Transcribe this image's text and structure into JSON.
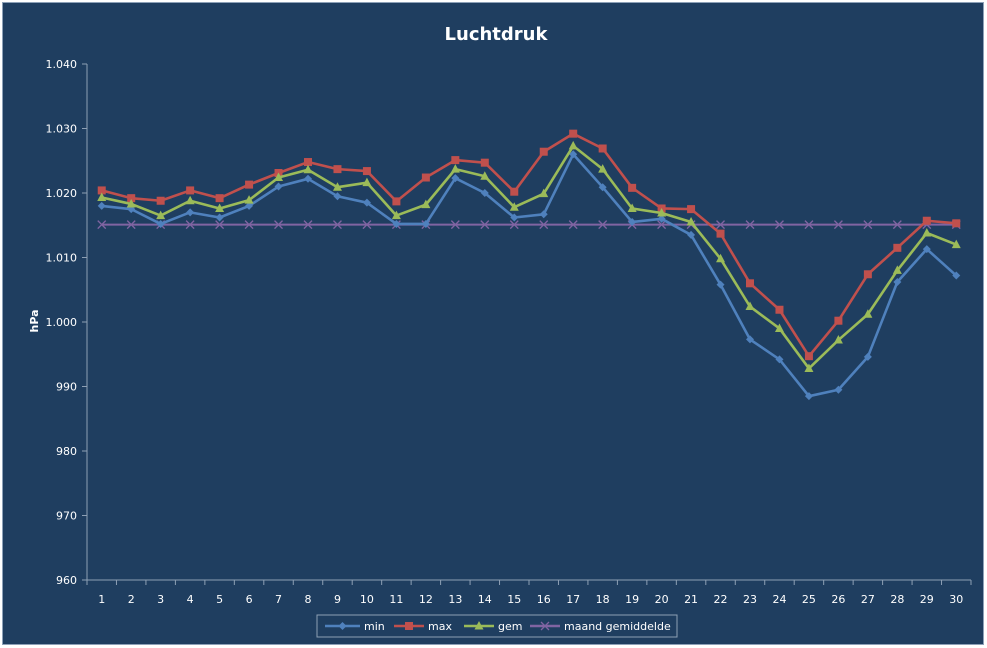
{
  "chart_data": {
    "type": "line",
    "title": "Luchtdruk",
    "xlabel": "",
    "ylabel": "hPa",
    "categories": [
      "1",
      "2",
      "3",
      "4",
      "5",
      "6",
      "7",
      "8",
      "9",
      "10",
      "11",
      "12",
      "13",
      "14",
      "15",
      "16",
      "17",
      "18",
      "19",
      "20",
      "21",
      "22",
      "23",
      "24",
      "25",
      "26",
      "27",
      "28",
      "29",
      "30"
    ],
    "ylim": [
      960,
      1040
    ],
    "yticks": [
      960,
      970,
      980,
      990,
      1000,
      1010,
      1020,
      1030,
      1040
    ],
    "ytick_labels": [
      "960",
      "970",
      "980",
      "990",
      "1.000",
      "1.010",
      "1.020",
      "1.030",
      "1.040"
    ],
    "grid": false,
    "legend_position": "bottom",
    "series": [
      {
        "name": "min",
        "color": "#4f81bd",
        "marker": "diamond",
        "values": [
          1018.0,
          1017.5,
          1015.2,
          1017.0,
          1016.2,
          1018.0,
          1021.0,
          1022.2,
          1019.5,
          1018.5,
          1015.2,
          1015.2,
          1022.3,
          1020.0,
          1016.2,
          1016.7,
          1026.0,
          1020.9,
          1015.5,
          1016.0,
          1013.5,
          1005.8,
          997.3,
          994.2,
          988.5,
          989.5,
          994.6,
          1006.2,
          1011.3,
          1007.2
        ]
      },
      {
        "name": "max",
        "color": "#c0504d",
        "marker": "square",
        "values": [
          1020.4,
          1019.2,
          1018.8,
          1020.4,
          1019.2,
          1021.3,
          1023.1,
          1024.8,
          1023.7,
          1023.4,
          1018.7,
          1022.4,
          1025.1,
          1024.7,
          1020.2,
          1026.4,
          1029.2,
          1026.9,
          1020.8,
          1017.6,
          1017.5,
          1013.7,
          1006.0,
          1001.9,
          994.7,
          1000.2,
          1007.4,
          1011.5,
          1015.7,
          1015.3
        ]
      },
      {
        "name": "gem",
        "color": "#9bbb59",
        "marker": "triangle",
        "values": [
          1019.3,
          1018.3,
          1016.5,
          1018.8,
          1017.6,
          1018.9,
          1022.4,
          1023.6,
          1020.9,
          1021.6,
          1016.5,
          1018.2,
          1023.7,
          1022.6,
          1017.8,
          1019.9,
          1027.3,
          1023.7,
          1017.6,
          1016.9,
          1015.5,
          1009.8,
          1002.4,
          999.0,
          992.8,
          997.2,
          1001.2,
          1008.0,
          1013.8,
          1012.0
        ]
      },
      {
        "name": "maand gemiddelde",
        "color": "#8064a2",
        "marker": "x",
        "values": [
          1015.1,
          1015.1,
          1015.1,
          1015.1,
          1015.1,
          1015.1,
          1015.1,
          1015.1,
          1015.1,
          1015.1,
          1015.1,
          1015.1,
          1015.1,
          1015.1,
          1015.1,
          1015.1,
          1015.1,
          1015.1,
          1015.1,
          1015.1,
          1015.1,
          1015.1,
          1015.1,
          1015.1,
          1015.1,
          1015.1,
          1015.1,
          1015.1,
          1015.1,
          1015.1
        ]
      }
    ]
  }
}
